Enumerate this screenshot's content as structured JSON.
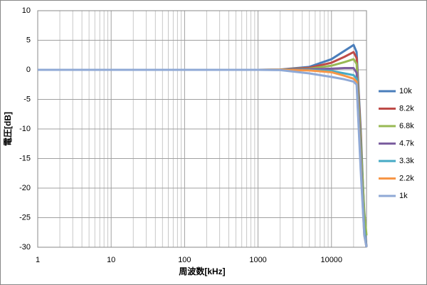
{
  "chart_data": {
    "type": "line",
    "x_label": "周波数[kHz]",
    "y_label": "電圧[dB]",
    "x": [
      1,
      10,
      100,
      1000,
      2000,
      5000,
      10000,
      15000,
      20000,
      22000,
      25000,
      28000,
      30000
    ],
    "series": [
      {
        "name": "10k",
        "color": "#4a7ebb",
        "values": [
          0,
          0,
          0,
          0,
          0.05,
          0.5,
          1.8,
          3.2,
          4.2,
          3,
          -10,
          -25,
          -30
        ]
      },
      {
        "name": "8.2k",
        "color": "#be4b48",
        "values": [
          0,
          0,
          0,
          0,
          0.03,
          0.35,
          1.2,
          2.2,
          3.0,
          2,
          -11,
          -26,
          -30
        ]
      },
      {
        "name": "6.8k",
        "color": "#98b954",
        "values": [
          0,
          0,
          0,
          0,
          0.02,
          0.2,
          0.7,
          1.3,
          1.8,
          1,
          -12,
          -24,
          -28
        ]
      },
      {
        "name": "4.7k",
        "color": "#7d60a0",
        "values": [
          0,
          0,
          0,
          0,
          0,
          0.1,
          0.2,
          0.3,
          0.3,
          -0.5,
          -14,
          -27,
          -30
        ]
      },
      {
        "name": "3.3k",
        "color": "#46aac5",
        "values": [
          0,
          0,
          0,
          0,
          0,
          -0.05,
          -0.2,
          -0.6,
          -0.9,
          -1.5,
          -15,
          -27,
          -30
        ]
      },
      {
        "name": "2.2k",
        "color": "#f79646",
        "values": [
          0,
          0,
          0,
          0,
          0,
          -0.1,
          -0.4,
          -1.0,
          -1.5,
          -2,
          -16,
          -28,
          -30
        ]
      },
      {
        "name": "1k",
        "color": "#8fa9d6",
        "values": [
          0,
          0,
          0,
          0,
          -0.05,
          -0.6,
          -1.2,
          -1.6,
          -2,
          -2.5,
          -17,
          -28,
          -30
        ]
      }
    ],
    "log_x": true,
    "xlim": [
      1,
      30000
    ],
    "xticks": [
      1,
      10,
      100,
      1000,
      10000
    ],
    "ylim": [
      -30,
      10
    ],
    "yticks": [
      -30,
      -25,
      -20,
      -15,
      -10,
      -5,
      0,
      5,
      10
    ],
    "grid": true,
    "minor_x_grid": true,
    "legend": "right"
  }
}
